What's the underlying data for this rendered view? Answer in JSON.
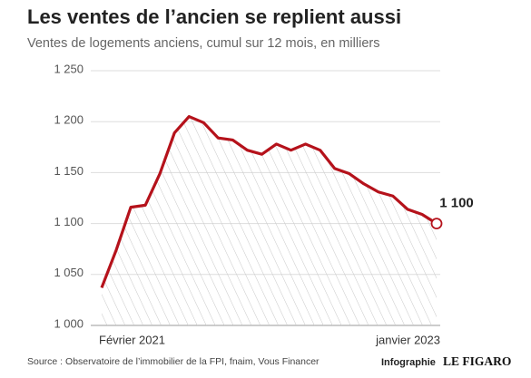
{
  "chart_data": {
    "type": "line",
    "title": "Les ventes de l’ancien se replient aussi",
    "subtitle": "Ventes de logements anciens, cumul sur 12 mois, en milliers",
    "categories": [
      "Février 2021",
      null,
      null,
      null,
      null,
      null,
      null,
      null,
      null,
      null,
      null,
      null,
      null,
      null,
      null,
      null,
      null,
      null,
      null,
      null,
      null,
      null,
      null,
      "janvier 2023"
    ],
    "series": [
      {
        "name": "Ventes de logements anciens",
        "color": "#b5121b",
        "values": [
          1037,
          1074,
          1116,
          1118,
          1149,
          1189,
          1205,
          1199,
          1184,
          1182,
          1172,
          1168,
          1178,
          1172,
          1178,
          1172,
          1154,
          1149,
          1139,
          1131,
          1127,
          1114,
          1109,
          1100
        ],
        "value_labels": [
          null,
          null,
          null,
          null,
          null,
          null,
          null,
          null,
          null,
          null,
          null,
          null,
          null,
          null,
          null,
          null,
          null,
          null,
          null,
          null,
          null,
          null,
          null,
          "1 100"
        ]
      }
    ],
    "ylim": [
      1000,
      1250
    ],
    "yticks": [
      {
        "value": 1000,
        "label": "1 000"
      },
      {
        "value": 1050,
        "label": "1 050"
      },
      {
        "value": 1100,
        "label": "1 100"
      },
      {
        "value": 1150,
        "label": "1 150"
      },
      {
        "value": 1200,
        "label": "1 200"
      },
      {
        "value": 1250,
        "label": "1 250"
      }
    ],
    "grid": true,
    "source": "Source : Observatoire de l’immobilier de la FPI, fnaim, Vous Financer",
    "credit": "Infographie",
    "logo": "LE FIGARO"
  }
}
